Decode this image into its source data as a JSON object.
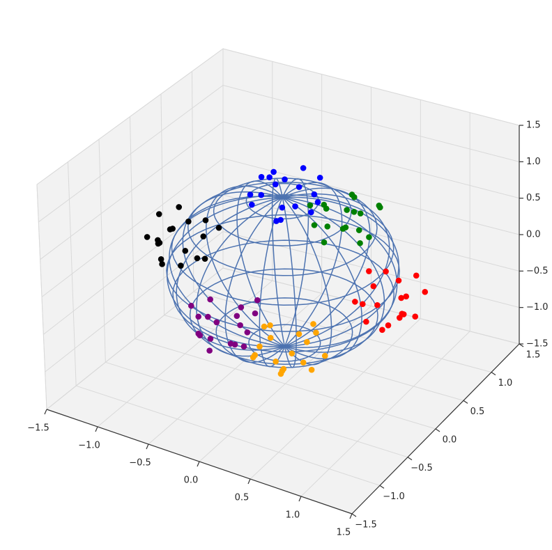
{
  "chart_data": {
    "type": "scatter3d",
    "xlim": [
      -1.5,
      1.5
    ],
    "ylim": [
      -1.5,
      1.5
    ],
    "zlim": [
      -1.5,
      1.5
    ],
    "xticks": [
      {
        "value": -1.5,
        "label": "−1.5"
      },
      {
        "value": -1.0,
        "label": "−1.0"
      },
      {
        "value": -0.5,
        "label": "−0.5"
      },
      {
        "value": 0,
        "label": "0.0"
      },
      {
        "value": 0.5,
        "label": "0.5"
      },
      {
        "value": 1.0,
        "label": "1.0"
      },
      {
        "value": 1.5,
        "label": "1.5"
      }
    ],
    "yticks": [
      {
        "value": -1.5,
        "label": "−1.5"
      },
      {
        "value": -1.0,
        "label": "−1.0"
      },
      {
        "value": -0.5,
        "label": "−0.5"
      },
      {
        "value": 0,
        "label": "0.0"
      },
      {
        "value": 0.5,
        "label": "0.5"
      },
      {
        "value": 1.0,
        "label": "1.0"
      },
      {
        "value": 1.5,
        "label": "1.5"
      }
    ],
    "zticks": [
      {
        "value": -1.5,
        "label": "−1.5"
      },
      {
        "value": -1.0,
        "label": "−1.0"
      },
      {
        "value": -0.5,
        "label": "−0.5"
      },
      {
        "value": 0,
        "label": "0.0"
      },
      {
        "value": 0.5,
        "label": "0.5"
      },
      {
        "value": 1.0,
        "label": "1.0"
      },
      {
        "value": 1.5,
        "label": "1.5"
      }
    ],
    "grid": true,
    "sphere": {
      "radius": 1,
      "color": "#4c72b0"
    },
    "series": [
      {
        "color": "#0000ff",
        "x": [
          0.12,
          -0.18,
          0.25,
          -0.05,
          0.08,
          -0.24,
          0.19,
          -0.13,
          0.03,
          0.28,
          -0.29,
          0.15,
          -0.09,
          0.21,
          -0.2,
          0.06,
          -0.02,
          0.17
        ],
        "y": [
          -0.21,
          0.09,
          0.17,
          -0.27,
          0.22,
          -0.11,
          -0.04,
          0.26,
          -0.16,
          0.06,
          0.14,
          -0.29,
          0.01,
          0.28,
          -0.2,
          0.11,
          -0.08,
          0.19
        ],
        "z": [
          1.05,
          1.14,
          0.92,
          1.19,
          1.28,
          0.88,
          1.24,
          1.02,
          0.8,
          1.11,
          1.07,
          0.95,
          1.3,
          1.16,
          1.09,
          0.83,
          1.22,
          0.74
        ]
      },
      {
        "color": "#ffa500",
        "x": [
          -0.21,
          0.09,
          0.17,
          -0.27,
          0.22,
          -0.11,
          -0.04,
          0.26,
          -0.16,
          0.06,
          0.14,
          -0.29,
          0.01,
          0.28,
          -0.2,
          0.11,
          -0.08,
          0.19
        ],
        "y": [
          0.12,
          -0.18,
          0.25,
          -0.05,
          0.08,
          -0.24,
          0.19,
          -0.13,
          0.03,
          0.28,
          -0.29,
          0.15,
          -0.09,
          0.21,
          -0.2,
          0.06,
          -0.02,
          0.17
        ],
        "z": [
          -1.05,
          -1.14,
          -0.92,
          -1.19,
          -1.28,
          -0.88,
          -1.24,
          -1.02,
          -0.8,
          -1.11,
          -1.07,
          -0.95,
          -1.3,
          -1.16,
          -1.09,
          -0.83,
          -1.22,
          -0.74
        ]
      },
      {
        "color": "#ff0000",
        "x": [
          1.05,
          1.14,
          0.92,
          1.19,
          1.28,
          0.88,
          1.24,
          1.02,
          0.8,
          1.11,
          1.07,
          0.95,
          1.3,
          1.16,
          1.09,
          0.83,
          1.22,
          0.74
        ],
        "y": [
          -0.21,
          0.09,
          0.17,
          -0.27,
          0.22,
          -0.11,
          -0.04,
          0.26,
          -0.16,
          0.06,
          0.14,
          -0.29,
          0.01,
          0.28,
          -0.2,
          0.11,
          -0.08,
          0.19
        ],
        "z": [
          0.12,
          -0.18,
          0.25,
          -0.05,
          0.08,
          -0.24,
          0.19,
          -0.13,
          0.03,
          0.28,
          -0.29,
          0.15,
          -0.09,
          0.21,
          -0.2,
          0.06,
          -0.02,
          0.17
        ]
      },
      {
        "color": "#008000",
        "x": [
          -0.21,
          0.09,
          0.17,
          -0.27,
          0.22,
          -0.11,
          -0.04,
          0.26,
          -0.16,
          0.06,
          0.14,
          -0.29,
          0.01,
          0.28,
          -0.2,
          0.11,
          -0.08,
          0.19
        ],
        "y": [
          1.05,
          1.14,
          0.92,
          1.19,
          1.28,
          0.88,
          1.24,
          1.02,
          0.8,
          1.11,
          1.07,
          0.95,
          1.3,
          1.16,
          1.09,
          0.83,
          1.22,
          0.74
        ],
        "z": [
          0.12,
          -0.18,
          0.25,
          -0.05,
          0.08,
          -0.24,
          0.19,
          -0.13,
          0.03,
          0.28,
          -0.29,
          0.15,
          -0.09,
          0.21,
          -0.2,
          0.06,
          -0.02,
          0.17
        ]
      },
      {
        "color": "#000000",
        "x": [
          -1.05,
          -1.14,
          -0.92,
          -1.19,
          -1.28,
          -0.88,
          -1.24,
          -1.02,
          -0.8,
          -1.11,
          -1.07,
          -0.95,
          -1.3,
          -1.16,
          -1.09,
          -0.83,
          -1.22,
          -0.74
        ],
        "y": [
          0.12,
          -0.18,
          0.25,
          -0.05,
          0.08,
          -0.24,
          0.19,
          -0.13,
          0.03,
          0.28,
          -0.29,
          0.15,
          -0.09,
          0.21,
          -0.2,
          0.06,
          -0.02,
          0.17
        ],
        "z": [
          -0.21,
          0.09,
          0.17,
          -0.27,
          0.22,
          -0.11,
          -0.04,
          0.26,
          -0.16,
          0.06,
          0.14,
          -0.29,
          0.01,
          0.28,
          -0.2,
          0.11,
          -0.08,
          0.19
        ]
      },
      {
        "color": "#800080",
        "x": [
          0.12,
          -0.18,
          0.25,
          -0.05,
          0.08,
          -0.24,
          0.19,
          -0.13,
          0.03,
          0.28,
          -0.29,
          0.15,
          -0.09,
          0.21,
          -0.2,
          0.06,
          -0.02,
          0.17
        ],
        "y": [
          -1.05,
          -1.14,
          -0.92,
          -1.19,
          -1.28,
          -0.88,
          -1.24,
          -1.02,
          -0.8,
          -1.11,
          -1.07,
          -0.95,
          -1.3,
          -1.16,
          -1.09,
          -0.83,
          -1.22,
          -0.74
        ],
        "z": [
          -0.21,
          0.09,
          0.17,
          -0.27,
          0.22,
          -0.11,
          -0.04,
          0.26,
          -0.16,
          0.06,
          0.14,
          -0.29,
          0.01,
          0.28,
          -0.2,
          0.11,
          -0.08,
          0.19
        ]
      }
    ]
  }
}
